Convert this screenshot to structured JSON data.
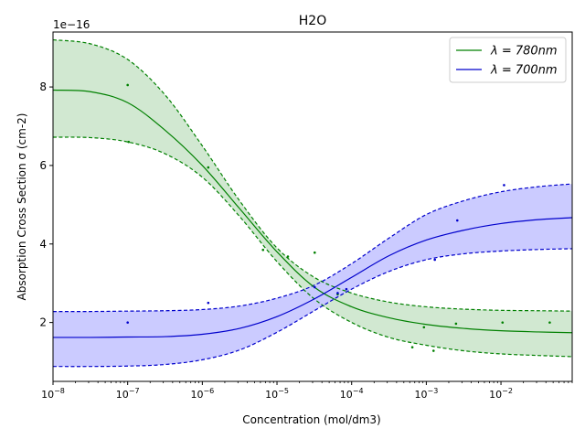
{
  "chart_data": {
    "type": "line",
    "title": "H2O",
    "xlabel": "Concentration (mol/dm3)",
    "ylabel": "Absorption Cross Section σ (cm-2)",
    "y_offset_label": "1e−16",
    "x_scale": "log",
    "xlim": [
      1e-08,
      0.09
    ],
    "ylim": [
      0.5,
      9.4
    ],
    "y_unit_multiplier": 1e-16,
    "x_ticks": [
      {
        "value": 1e-08,
        "label": "10−8"
      },
      {
        "value": 1e-07,
        "label": "10−7"
      },
      {
        "value": 1e-06,
        "label": "10−6"
      },
      {
        "value": 1e-05,
        "label": "10−5"
      },
      {
        "value": 0.0001,
        "label": "10−4"
      },
      {
        "value": 0.001,
        "label": "10−3"
      },
      {
        "value": 0.01,
        "label": "10−2"
      }
    ],
    "y_ticks": [
      2,
      4,
      6,
      8
    ],
    "legend_position": "top-right",
    "grid": false,
    "series": [
      {
        "name": "λ = 780nm",
        "color": "#008000",
        "fill_color": "#7fbf7f",
        "curve": [
          [
            1e-08,
            7.92
          ],
          [
            3.16e-08,
            7.88
          ],
          [
            1e-07,
            7.6
          ],
          [
            3.16e-07,
            6.9
          ],
          [
            1e-06,
            6.0
          ],
          [
            3.16e-06,
            4.9
          ],
          [
            1e-05,
            3.8
          ],
          [
            3.16e-05,
            2.9
          ],
          [
            0.0001,
            2.4
          ],
          [
            0.000316,
            2.12
          ],
          [
            0.001,
            1.95
          ],
          [
            0.00316,
            1.85
          ],
          [
            0.01,
            1.79
          ],
          [
            0.0316,
            1.76
          ],
          [
            0.09,
            1.74
          ]
        ],
        "upper": [
          [
            1e-08,
            9.2
          ],
          [
            3.16e-08,
            9.1
          ],
          [
            1e-07,
            8.7
          ],
          [
            3.16e-07,
            7.8
          ],
          [
            1e-06,
            6.5
          ],
          [
            3.16e-06,
            5.1
          ],
          [
            1e-05,
            3.9
          ],
          [
            3.16e-05,
            3.15
          ],
          [
            0.0001,
            2.75
          ],
          [
            0.000316,
            2.52
          ],
          [
            0.001,
            2.4
          ],
          [
            0.00316,
            2.34
          ],
          [
            0.01,
            2.31
          ],
          [
            0.0316,
            2.3
          ],
          [
            0.09,
            2.29
          ]
        ],
        "lower": [
          [
            1e-08,
            6.72
          ],
          [
            3.16e-08,
            6.71
          ],
          [
            1e-07,
            6.6
          ],
          [
            3.16e-07,
            6.3
          ],
          [
            1e-06,
            5.7
          ],
          [
            3.16e-06,
            4.7
          ],
          [
            1e-05,
            3.55
          ],
          [
            3.16e-05,
            2.6
          ],
          [
            0.0001,
            2.0
          ],
          [
            0.000316,
            1.62
          ],
          [
            0.001,
            1.42
          ],
          [
            0.00316,
            1.28
          ],
          [
            0.01,
            1.2
          ],
          [
            0.0316,
            1.16
          ],
          [
            0.09,
            1.13
          ]
        ],
        "points": [
          [
            1e-07,
            8.05
          ],
          [
            1.03e-07,
            6.6
          ],
          [
            1.2e-06,
            5.95
          ],
          [
            6.5e-06,
            3.85
          ],
          [
            1.4e-05,
            3.68
          ],
          [
            3.2e-05,
            3.78
          ],
          [
            6.5e-05,
            2.72
          ],
          [
            0.00065,
            1.37
          ],
          [
            0.00093,
            1.88
          ],
          [
            0.00125,
            1.28
          ],
          [
            0.0025,
            1.97
          ],
          [
            0.0105,
            2.0
          ],
          [
            0.045,
            2.0
          ]
        ]
      },
      {
        "name": "λ = 700nm",
        "color": "#0000cc",
        "fill_color": "#c8c8ff",
        "curve": [
          [
            1e-08,
            1.62
          ],
          [
            3.16e-08,
            1.62
          ],
          [
            1e-07,
            1.63
          ],
          [
            3.16e-07,
            1.64
          ],
          [
            1e-06,
            1.7
          ],
          [
            3.16e-06,
            1.85
          ],
          [
            1e-05,
            2.15
          ],
          [
            3.16e-05,
            2.6
          ],
          [
            0.0001,
            3.15
          ],
          [
            0.000316,
            3.7
          ],
          [
            0.001,
            4.1
          ],
          [
            0.00316,
            4.35
          ],
          [
            0.01,
            4.52
          ],
          [
            0.0316,
            4.62
          ],
          [
            0.09,
            4.67
          ]
        ],
        "upper": [
          [
            1e-08,
            2.28
          ],
          [
            3.16e-08,
            2.28
          ],
          [
            1e-07,
            2.29
          ],
          [
            3.16e-07,
            2.3
          ],
          [
            1e-06,
            2.33
          ],
          [
            3.16e-06,
            2.42
          ],
          [
            1e-05,
            2.62
          ],
          [
            3.16e-05,
            2.95
          ],
          [
            0.0001,
            3.5
          ],
          [
            0.000316,
            4.15
          ],
          [
            0.001,
            4.75
          ],
          [
            0.00316,
            5.1
          ],
          [
            0.01,
            5.33
          ],
          [
            0.0316,
            5.46
          ],
          [
            0.09,
            5.53
          ]
        ],
        "lower": [
          [
            1e-08,
            0.88
          ],
          [
            3.16e-08,
            0.88
          ],
          [
            1e-07,
            0.89
          ],
          [
            3.16e-07,
            0.93
          ],
          [
            1e-06,
            1.05
          ],
          [
            3.16e-06,
            1.3
          ],
          [
            1e-05,
            1.75
          ],
          [
            3.16e-05,
            2.3
          ],
          [
            0.0001,
            2.85
          ],
          [
            0.000316,
            3.3
          ],
          [
            0.001,
            3.6
          ],
          [
            0.00316,
            3.75
          ],
          [
            0.01,
            3.82
          ],
          [
            0.0316,
            3.86
          ],
          [
            0.09,
            3.88
          ]
        ],
        "points": [
          [
            1e-07,
            2.0
          ],
          [
            1.2e-06,
            2.5
          ],
          [
            3.2e-05,
            2.9
          ],
          [
            6.5e-05,
            2.75
          ],
          [
            8.5e-05,
            2.85
          ],
          [
            0.0013,
            3.6
          ],
          [
            0.0026,
            4.6
          ],
          [
            0.011,
            5.5
          ]
        ]
      }
    ]
  }
}
